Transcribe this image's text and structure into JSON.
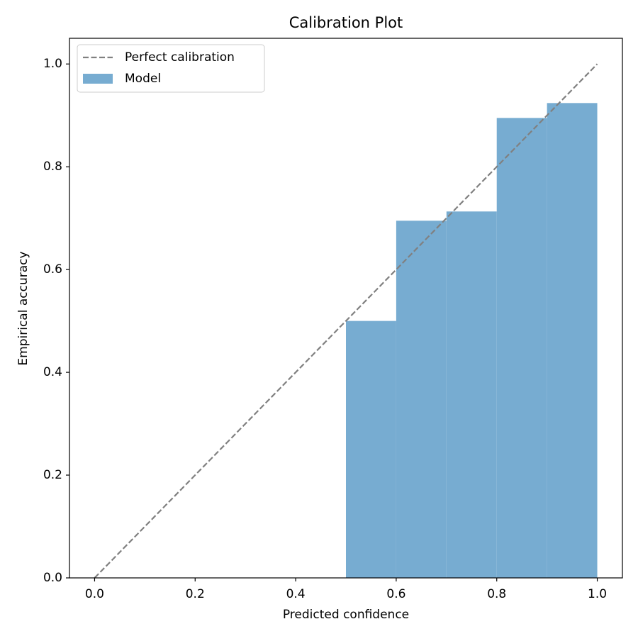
{
  "chart_data": {
    "type": "histogram",
    "title": "Calibration Plot",
    "x_label": "Predicted confidence",
    "y_label": "Empirical accuracy",
    "xlim": [
      -0.05,
      1.05
    ],
    "ylim": [
      0,
      1.05
    ],
    "xticks": [
      {
        "value": 0,
        "label": "0.0"
      },
      0.2,
      0.4,
      0.6,
      0.8,
      {
        "value": 1,
        "label": "1.0"
      }
    ],
    "yticks": [
      {
        "value": 0,
        "label": "0.0"
      },
      0.2,
      0.4,
      0.6,
      0.8,
      {
        "value": 1,
        "label": "1.0"
      }
    ],
    "legend": "upper left",
    "series": [
      {
        "name": "Perfect calibration",
        "type": "line",
        "color": "#808080",
        "dashed": true,
        "x": [
          0,
          1
        ],
        "values": [
          0,
          1
        ]
      },
      {
        "name": "Model",
        "type": "bar",
        "color": "#77acd1",
        "bins": [
          0.5,
          0.6,
          0.7,
          0.8,
          0.9,
          1.0
        ],
        "values": [
          0.5,
          0.695,
          0.713,
          0.895,
          0.924
        ]
      }
    ]
  }
}
